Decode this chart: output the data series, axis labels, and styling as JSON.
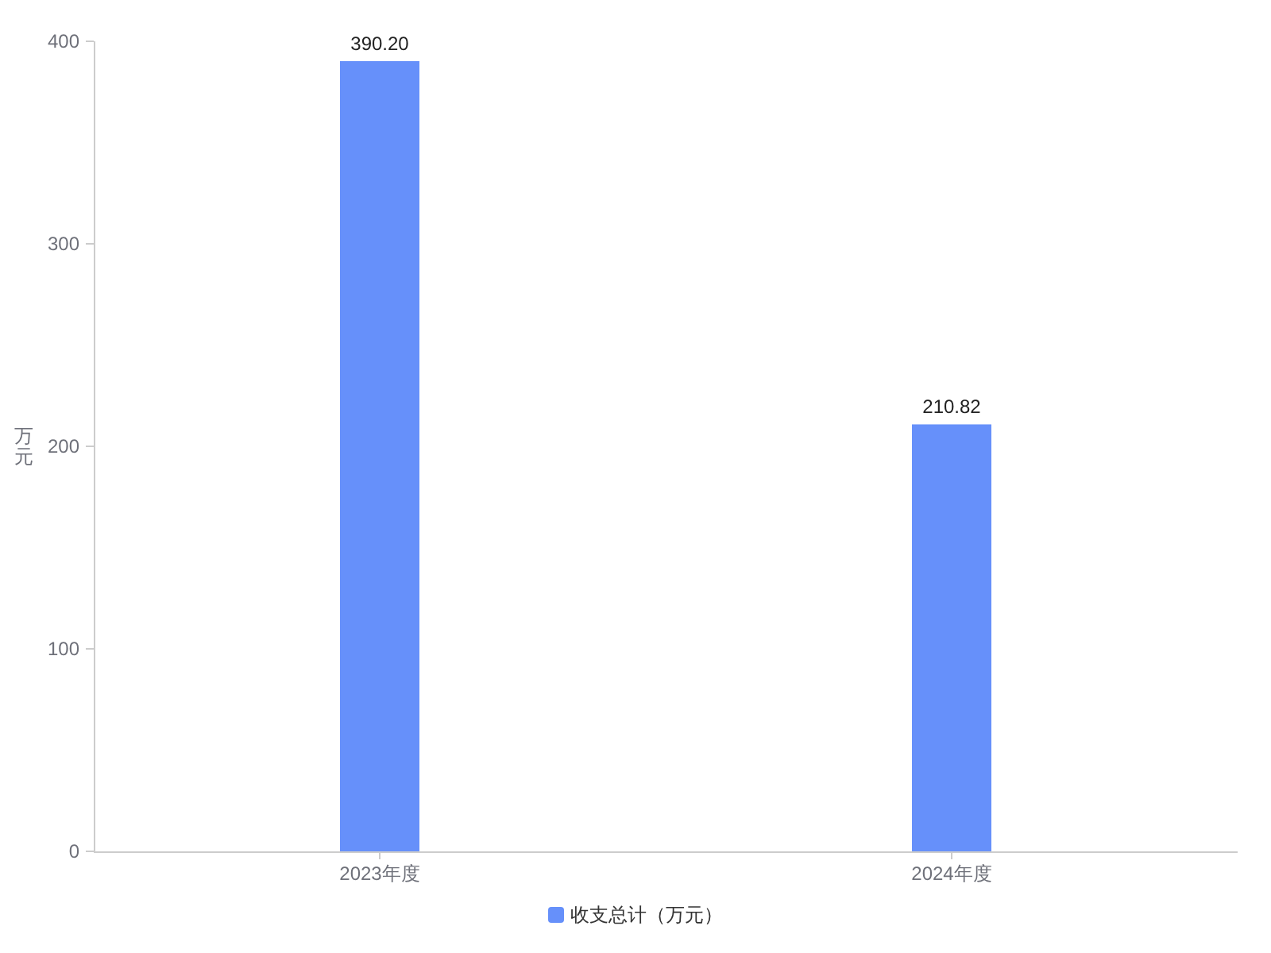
{
  "chart_data": {
    "type": "bar",
    "categories": [
      "2023年度",
      "2024年度"
    ],
    "series": [
      {
        "name": "收支总计（万元）",
        "color": "#6690fa",
        "values": [
          390.2,
          210.82
        ],
        "value_labels": [
          "390.20",
          "210.82"
        ]
      }
    ],
    "ylabel": "万元",
    "ylim": [
      0,
      400
    ],
    "yticks": [
      0,
      100,
      200,
      300,
      400
    ],
    "legend": "bottom",
    "grid": false
  }
}
